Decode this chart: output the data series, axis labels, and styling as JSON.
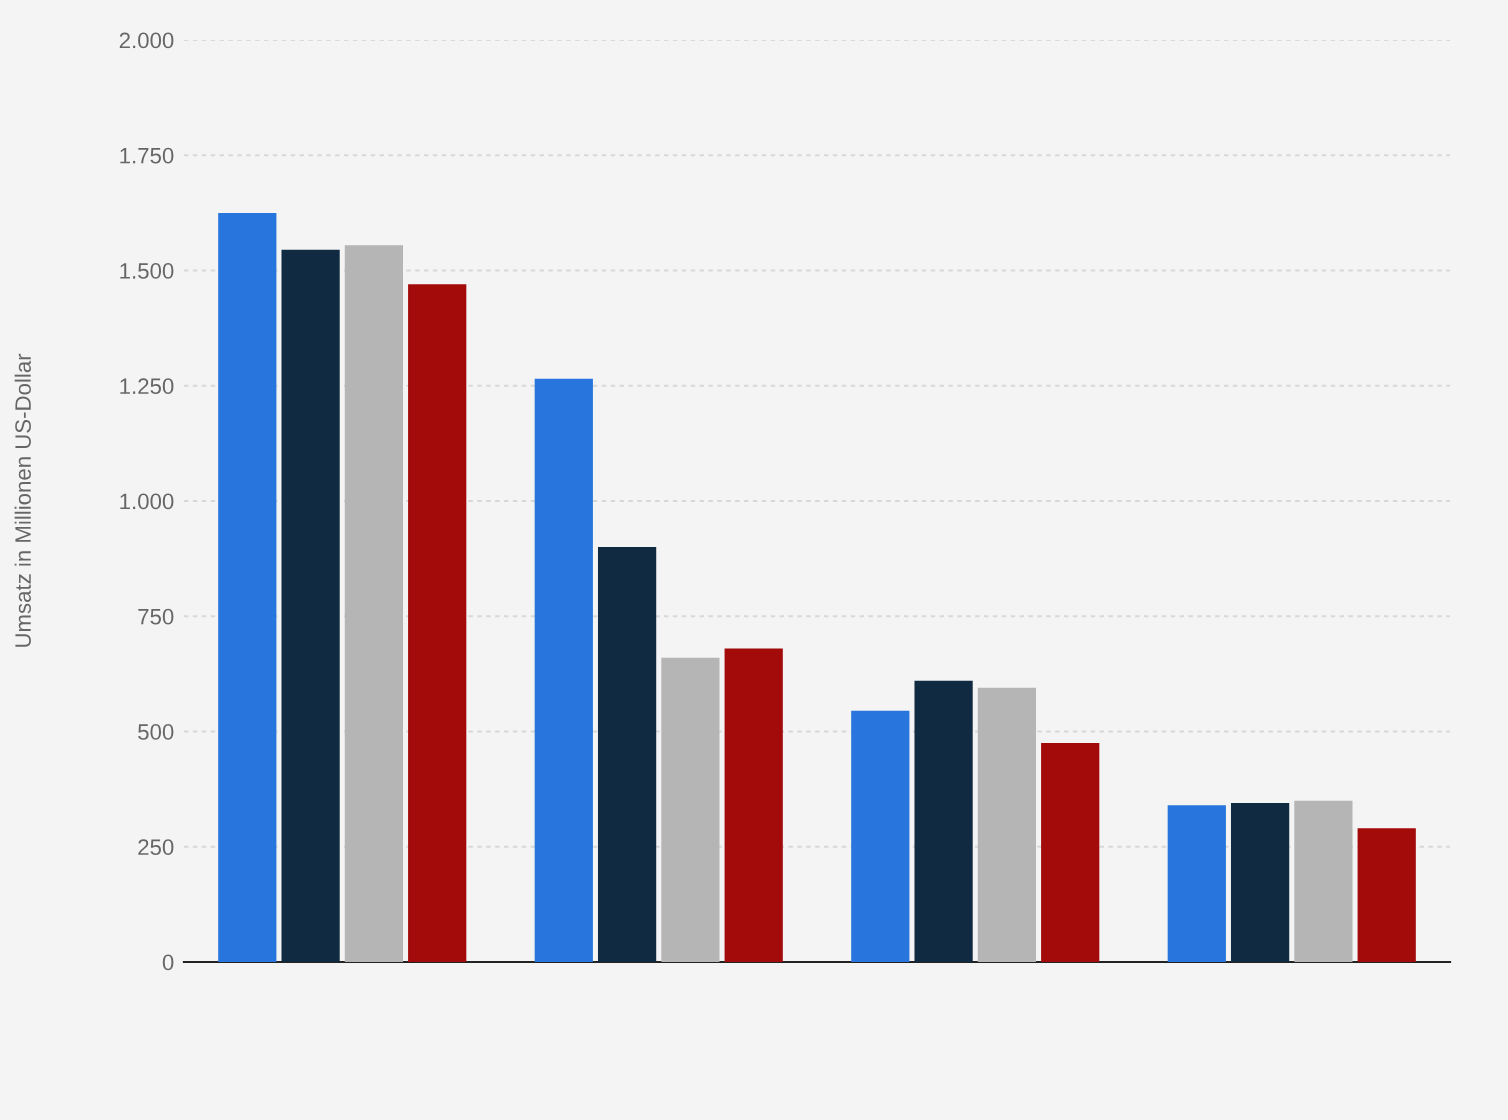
{
  "chart_data": {
    "type": "bar",
    "ylabel": "Umsatz in Millionen US-Dollar",
    "categories": [
      null,
      null,
      null,
      null
    ],
    "series": [
      {
        "color": "#2876dd",
        "values": [
          1625,
          1265,
          545,
          340
        ]
      },
      {
        "color": "#0f2a41",
        "values": [
          1545,
          900,
          610,
          345
        ]
      },
      {
        "color": "#b5b5b5",
        "values": [
          1555,
          660,
          595,
          350
        ]
      },
      {
        "color": "#a30b0b",
        "values": [
          1470,
          680,
          475,
          290
        ]
      }
    ],
    "ylim": [
      0,
      2000
    ],
    "yticks": [
      0,
      250,
      500,
      750,
      {
        "value": 1000,
        "label": "1.000"
      },
      {
        "value": 1250,
        "label": "1.250"
      },
      {
        "value": 1500,
        "label": "1.500"
      },
      {
        "value": 1750,
        "label": "1.750"
      },
      {
        "value": 2000,
        "label": "2.000"
      }
    ],
    "grid": "y",
    "tick_labels": "y",
    "legend": false
  }
}
